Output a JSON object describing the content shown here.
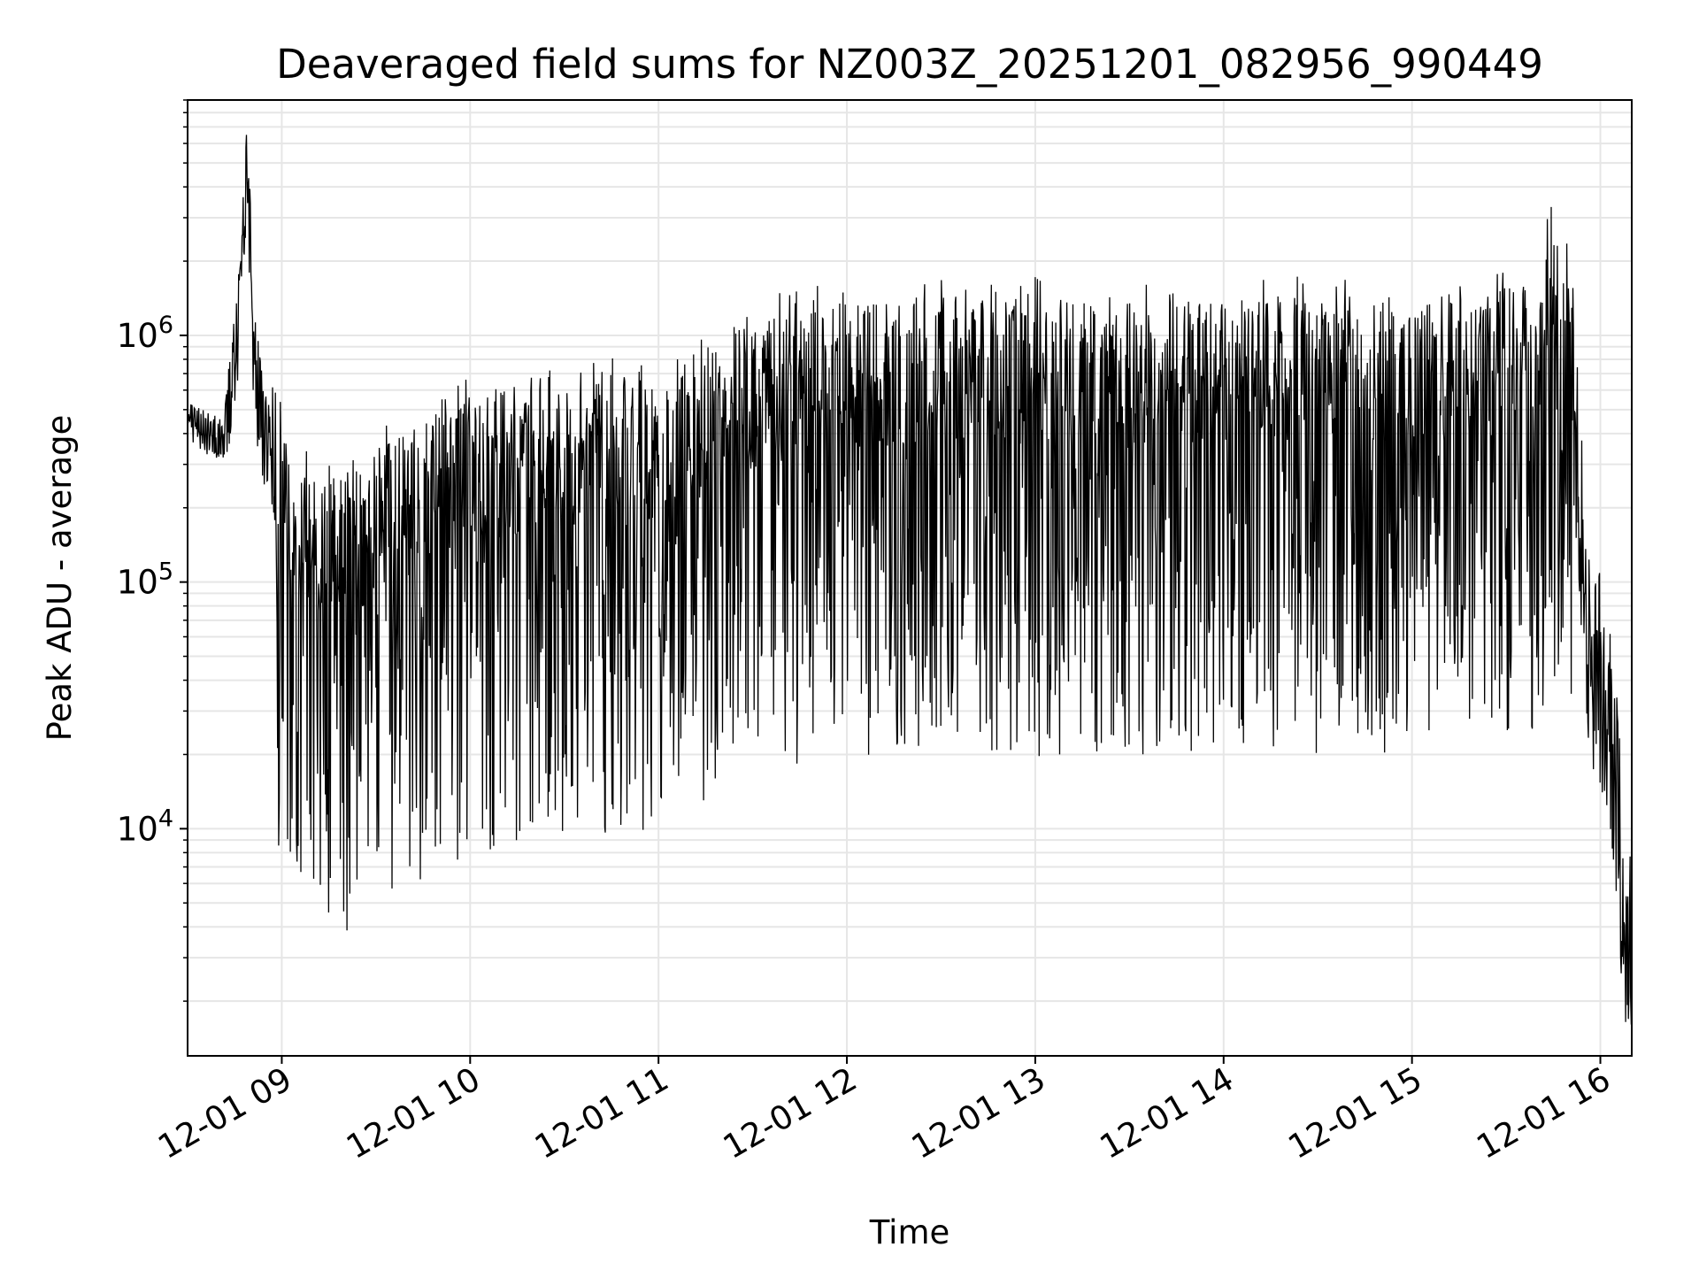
{
  "chart_data": {
    "type": "line",
    "title": "Deaveraged field sums for NZ003Z_20251201_082956_990449",
    "xlabel": "Time",
    "ylabel": "Peak ADU - average",
    "x_ticks": [
      "12-01 09",
      "12-01 10",
      "12-01 11",
      "12-01 12",
      "12-01 13",
      "12-01 14",
      "12-01 15",
      "12-01 16"
    ],
    "x_tick_hours": [
      9,
      10,
      11,
      12,
      13,
      14,
      15,
      16
    ],
    "y_ticks": [
      {
        "base": "10",
        "exp": "4",
        "value": 10000
      },
      {
        "base": "10",
        "exp": "5",
        "value": 100000
      },
      {
        "base": "10",
        "exp": "6",
        "value": 1000000
      }
    ],
    "xlim": [
      "2025-12-01 08:30",
      "2025-12-01 16:10"
    ],
    "ylim": [
      1200,
      9000000
    ],
    "y_scale": "log",
    "grid": true,
    "line_color": "#000000",
    "grid_color": "#e6e6e6",
    "series": [
      {
        "x": [
          "2025-12-01 08:30",
          "2025-12-01 08:36",
          "2025-12-01 08:42",
          "2025-12-01 08:46",
          "2025-12-01 08:49",
          "2025-12-01 08:51",
          "2025-12-01 08:54",
          "2025-12-01 08:58",
          "2025-12-01 09:03",
          "2025-12-01 09:10",
          "2025-12-01 09:20",
          "2025-12-01 09:30",
          "2025-12-01 09:45",
          "2025-12-01 10:00",
          "2025-12-01 10:30",
          "2025-12-01 11:00",
          "2025-12-01 11:30",
          "2025-12-01 12:00",
          "2025-12-01 12:30",
          "2025-12-01 13:00",
          "2025-12-01 13:30",
          "2025-12-01 14:00",
          "2025-12-01 14:30",
          "2025-12-01 15:00",
          "2025-12-01 15:20",
          "2025-12-01 15:30",
          "2025-12-01 15:40",
          "2025-12-01 15:47",
          "2025-12-01 15:50",
          "2025-12-01 15:53",
          "2025-12-01 15:56",
          "2025-12-01 15:58",
          "2025-12-01 16:00",
          "2025-12-01 16:03",
          "2025-12-01 16:06",
          "2025-12-01 16:08",
          "2025-12-01 16:10"
        ],
        "values": [
          450000,
          400000,
          380000,
          1050000,
          5500000,
          800000,
          400000,
          300000,
          150000,
          120000,
          120000,
          150000,
          200000,
          250000,
          280000,
          300000,
          500000,
          600000,
          650000,
          620000,
          600000,
          650000,
          620000,
          650000,
          650000,
          700000,
          800000,
          1500000,
          1000000,
          300000,
          60000,
          40000,
          40000,
          25000,
          10000,
          3000,
          3500
        ]
      }
    ]
  }
}
